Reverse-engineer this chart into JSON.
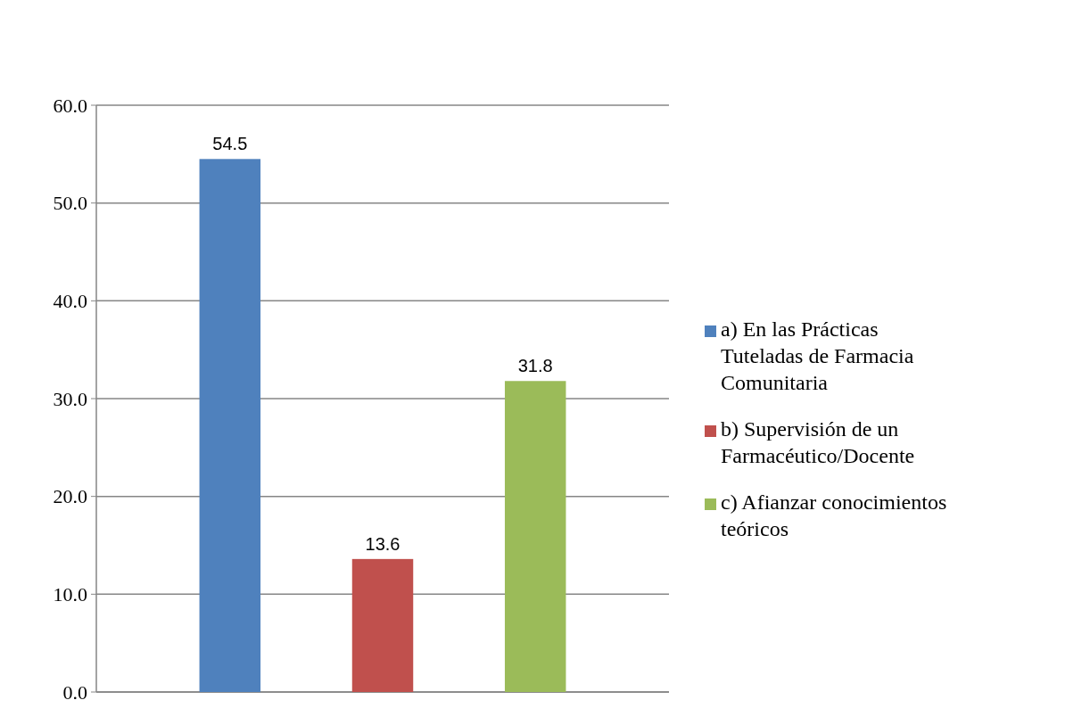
{
  "chart_data": {
    "type": "bar",
    "categories": [
      null
    ],
    "series": [
      {
        "name": "a) En las Prácticas Tuteladas de Farmacia Comunitaria",
        "color": "#4f81bd",
        "values": [
          54.5
        ]
      },
      {
        "name": "b) Supervisión de un Farmacéutico/Docente",
        "color": "#c0504d",
        "values": [
          13.6
        ]
      },
      {
        "name": "c) Afianzar conocimientos teóricos",
        "color": "#9bbb59",
        "values": [
          31.8
        ]
      }
    ],
    "ylim": [
      0,
      60
    ],
    "yticks": [
      {
        "value": 0,
        "label": "0.0"
      },
      {
        "value": 10,
        "label": "10.0"
      },
      {
        "value": 20,
        "label": "20.0"
      },
      {
        "value": 30,
        "label": "30.0"
      },
      {
        "value": 40,
        "label": "40.0"
      },
      {
        "value": 50,
        "label": "50.0"
      },
      {
        "value": 60,
        "label": "60.0"
      }
    ],
    "grid": "y",
    "legend": "right",
    "data_labels": true
  }
}
